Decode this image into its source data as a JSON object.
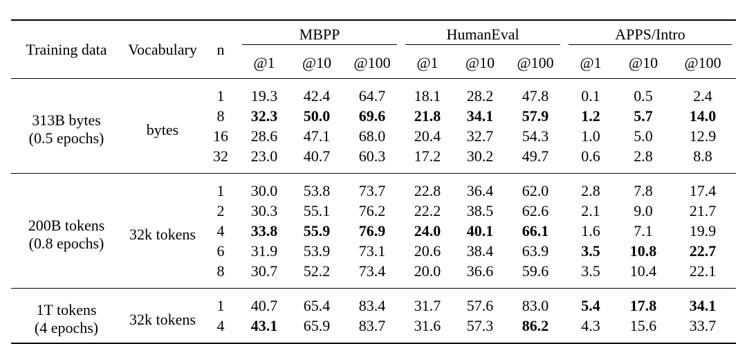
{
  "columns": {
    "training_data": "Training data",
    "vocabulary": "Vocabulary",
    "n": "n",
    "groups": [
      "MBPP",
      "HumanEval",
      "APPS/Intro"
    ],
    "k": [
      "@1",
      "@10",
      "@100"
    ]
  },
  "sections": [
    {
      "training_line1": "313B bytes",
      "training_line2": "(0.5 epochs)",
      "vocabulary": "bytes",
      "rows": [
        {
          "n": "1",
          "vals": [
            "19.3",
            "42.4",
            "64.7",
            "18.1",
            "28.2",
            "47.8",
            "0.1",
            "0.5",
            "2.4"
          ],
          "bold": [
            false,
            false,
            false,
            false,
            false,
            false,
            false,
            false,
            false
          ]
        },
        {
          "n": "8",
          "vals": [
            "32.3",
            "50.0",
            "69.6",
            "21.8",
            "34.1",
            "57.9",
            "1.2",
            "5.7",
            "14.0"
          ],
          "bold": [
            true,
            true,
            true,
            true,
            true,
            true,
            true,
            true,
            true
          ]
        },
        {
          "n": "16",
          "vals": [
            "28.6",
            "47.1",
            "68.0",
            "20.4",
            "32.7",
            "54.3",
            "1.0",
            "5.0",
            "12.9"
          ],
          "bold": [
            false,
            false,
            false,
            false,
            false,
            false,
            false,
            false,
            false
          ]
        },
        {
          "n": "32",
          "vals": [
            "23.0",
            "40.7",
            "60.3",
            "17.2",
            "30.2",
            "49.7",
            "0.6",
            "2.8",
            "8.8"
          ],
          "bold": [
            false,
            false,
            false,
            false,
            false,
            false,
            false,
            false,
            false
          ]
        }
      ]
    },
    {
      "training_line1": "200B tokens",
      "training_line2": "(0.8 epochs)",
      "vocabulary": "32k tokens",
      "rows": [
        {
          "n": "1",
          "vals": [
            "30.0",
            "53.8",
            "73.7",
            "22.8",
            "36.4",
            "62.0",
            "2.8",
            "7.8",
            "17.4"
          ],
          "bold": [
            false,
            false,
            false,
            false,
            false,
            false,
            false,
            false,
            false
          ]
        },
        {
          "n": "2",
          "vals": [
            "30.3",
            "55.1",
            "76.2",
            "22.2",
            "38.5",
            "62.6",
            "2.1",
            "9.0",
            "21.7"
          ],
          "bold": [
            false,
            false,
            false,
            false,
            false,
            false,
            false,
            false,
            false
          ]
        },
        {
          "n": "4",
          "vals": [
            "33.8",
            "55.9",
            "76.9",
            "24.0",
            "40.1",
            "66.1",
            "1.6",
            "7.1",
            "19.9"
          ],
          "bold": [
            true,
            true,
            true,
            true,
            true,
            true,
            false,
            false,
            false
          ]
        },
        {
          "n": "6",
          "vals": [
            "31.9",
            "53.9",
            "73.1",
            "20.6",
            "38.4",
            "63.9",
            "3.5",
            "10.8",
            "22.7"
          ],
          "bold": [
            false,
            false,
            false,
            false,
            false,
            false,
            true,
            true,
            true
          ]
        },
        {
          "n": "8",
          "vals": [
            "30.7",
            "52.2",
            "73.4",
            "20.0",
            "36.6",
            "59.6",
            "3.5",
            "10.4",
            "22.1"
          ],
          "bold": [
            false,
            false,
            false,
            false,
            false,
            false,
            false,
            false,
            false
          ]
        }
      ]
    },
    {
      "training_line1": "1T tokens",
      "training_line2": "(4 epochs)",
      "vocabulary": "32k tokens",
      "rows": [
        {
          "n": "1",
          "vals": [
            "40.7",
            "65.4",
            "83.4",
            "31.7",
            "57.6",
            "83.0",
            "5.4",
            "17.8",
            "34.1"
          ],
          "bold": [
            false,
            false,
            false,
            false,
            false,
            false,
            true,
            true,
            true
          ]
        },
        {
          "n": "4",
          "vals": [
            "43.1",
            "65.9",
            "83.7",
            "31.6",
            "57.3",
            "86.2",
            "4.3",
            "15.6",
            "33.7"
          ],
          "bold": [
            true,
            false,
            false,
            false,
            false,
            true,
            false,
            false,
            false
          ]
        }
      ]
    }
  ]
}
